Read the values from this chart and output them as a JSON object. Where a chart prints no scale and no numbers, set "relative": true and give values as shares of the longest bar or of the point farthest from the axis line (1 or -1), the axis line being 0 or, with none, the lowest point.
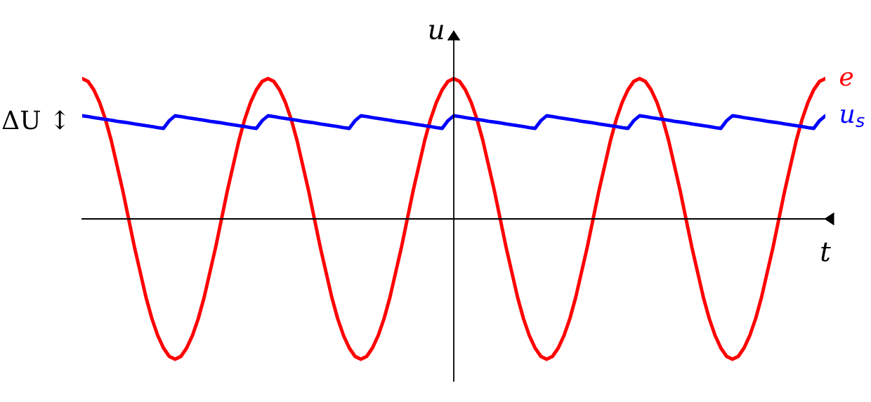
{
  "chart_data": {
    "type": "line",
    "relative": true,
    "xlabel": "t",
    "ylabel": "u",
    "annotations": [
      "ΔU ↕"
    ],
    "legend": false,
    "marker": "none",
    "line_style": "solid",
    "categories": [
      null,
      null,
      null,
      null,
      null,
      null,
      null,
      null,
      null,
      null,
      null,
      null,
      null,
      null,
      null,
      null,
      null,
      null,
      null,
      null,
      null,
      null,
      null,
      null,
      null,
      null,
      null,
      null,
      null,
      null,
      null,
      null,
      null,
      null,
      null,
      null,
      null,
      null,
      null,
      null,
      null,
      null,
      null,
      null,
      null,
      null,
      null,
      null,
      null,
      null,
      null,
      null,
      null,
      null,
      null,
      null,
      null,
      null,
      null,
      null,
      null,
      null,
      null,
      null,
      null,
      null,
      null,
      null,
      null,
      null,
      null,
      null,
      null,
      null,
      null,
      null,
      null,
      null,
      null,
      null,
      null,
      null,
      null,
      null,
      null,
      null,
      null,
      null,
      null,
      null,
      null,
      null,
      null,
      null,
      null,
      null,
      null,
      null,
      null,
      null,
      null,
      null,
      null,
      null,
      null,
      null,
      null,
      null,
      null,
      null,
      null,
      null,
      null,
      null,
      null,
      null,
      null,
      null,
      null,
      null,
      null,
      null,
      null,
      null,
      null,
      null,
      null,
      null,
      null
    ],
    "series": [
      {
        "name": "e",
        "color": "#ff0000",
        "values": [
          1,
          0.98,
          0.92,
          0.83,
          0.71,
          0.56,
          0.38,
          0.2,
          0,
          -0.2,
          -0.38,
          -0.56,
          -0.71,
          -0.83,
          -0.92,
          -0.98,
          -1,
          -0.98,
          -0.92,
          -0.83,
          -0.71,
          -0.56,
          -0.38,
          -0.2,
          0,
          0.2,
          0.38,
          0.56,
          0.71,
          0.83,
          0.92,
          0.98,
          1,
          0.98,
          0.92,
          0.83,
          0.71,
          0.56,
          0.38,
          0.2,
          0,
          -0.2,
          -0.38,
          -0.56,
          -0.71,
          -0.83,
          -0.92,
          -0.98,
          -1,
          -0.98,
          -0.92,
          -0.83,
          -0.71,
          -0.56,
          -0.38,
          -0.2,
          0,
          0.2,
          0.38,
          0.56,
          0.71,
          0.83,
          0.92,
          0.98,
          1,
          0.98,
          0.92,
          0.83,
          0.71,
          0.56,
          0.38,
          0.2,
          0,
          -0.2,
          -0.38,
          -0.56,
          -0.71,
          -0.83,
          -0.92,
          -0.98,
          -1,
          -0.98,
          -0.92,
          -0.83,
          -0.71,
          -0.56,
          -0.38,
          -0.2,
          0,
          0.2,
          0.38,
          0.56,
          0.71,
          0.83,
          0.92,
          0.98,
          1,
          0.98,
          0.92,
          0.83,
          0.71,
          0.56,
          0.38,
          0.2,
          0,
          -0.2,
          -0.38,
          -0.56,
          -0.71,
          -0.83,
          -0.92,
          -0.98,
          -1,
          -0.98,
          -0.92,
          -0.83,
          -0.71,
          -0.56,
          -0.38,
          -0.2,
          0,
          0.2,
          0.38,
          0.56,
          0.71,
          0.83,
          0.92,
          0.98,
          1
        ]
      },
      {
        "name": "u$_{s}$",
        "color": "#0000ff",
        "values": [
          0.735,
          0.729,
          0.722,
          0.716,
          0.709,
          0.703,
          0.696,
          0.69,
          0.684,
          0.677,
          0.671,
          0.664,
          0.658,
          0.651,
          0.645,
          0.7,
          0.735,
          0.729,
          0.722,
          0.716,
          0.709,
          0.703,
          0.696,
          0.69,
          0.684,
          0.677,
          0.671,
          0.664,
          0.658,
          0.651,
          0.645,
          0.7,
          0.735,
          0.729,
          0.722,
          0.716,
          0.709,
          0.703,
          0.696,
          0.69,
          0.684,
          0.677,
          0.671,
          0.664,
          0.658,
          0.651,
          0.645,
          0.7,
          0.735,
          0.729,
          0.722,
          0.716,
          0.709,
          0.703,
          0.696,
          0.69,
          0.684,
          0.677,
          0.671,
          0.664,
          0.658,
          0.651,
          0.645,
          0.7,
          0.735,
          0.729,
          0.722,
          0.716,
          0.709,
          0.703,
          0.696,
          0.69,
          0.684,
          0.677,
          0.671,
          0.664,
          0.658,
          0.651,
          0.645,
          0.7,
          0.735,
          0.729,
          0.722,
          0.716,
          0.709,
          0.703,
          0.696,
          0.69,
          0.684,
          0.677,
          0.671,
          0.664,
          0.658,
          0.651,
          0.645,
          0.7,
          0.735,
          0.729,
          0.722,
          0.716,
          0.709,
          0.703,
          0.696,
          0.69,
          0.684,
          0.677,
          0.671,
          0.664,
          0.658,
          0.651,
          0.645,
          0.7,
          0.735,
          0.729,
          0.722,
          0.716,
          0.709,
          0.703,
          0.696,
          0.69,
          0.684,
          0.677,
          0.671,
          0.664,
          0.658,
          0.651,
          0.645,
          0.7,
          0.735
        ]
      }
    ]
  }
}
